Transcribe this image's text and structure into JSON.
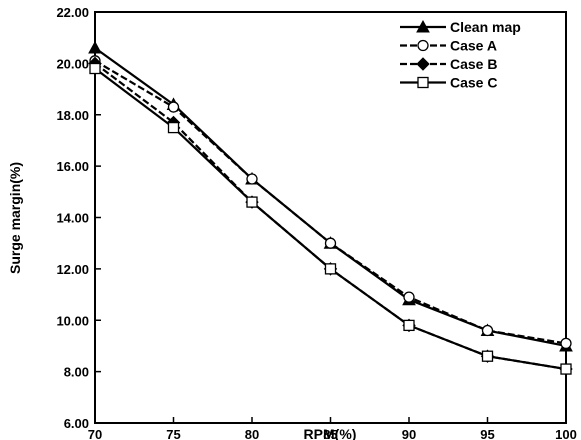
{
  "chart_data": {
    "type": "line",
    "title": "",
    "xlabel": "RPM(%)",
    "ylabel": "Surge margin(%)",
    "xlim": [
      70,
      100
    ],
    "ylim": [
      6,
      22
    ],
    "x_ticks": [
      "70",
      "75",
      "80",
      "85",
      "90",
      "95",
      "100"
    ],
    "y_ticks": [
      "6.00",
      "8.00",
      "10.00",
      "12.00",
      "14.00",
      "16.00",
      "18.00",
      "20.00",
      "22.00"
    ],
    "grid": false,
    "legend_position": "top-right",
    "x": [
      70,
      75,
      80,
      85,
      90,
      95,
      100
    ],
    "series": [
      {
        "name": "Clean map",
        "values": [
          20.6,
          18.4,
          15.5,
          13.0,
          10.8,
          9.6,
          9.0
        ],
        "marker": "triangle-filled",
        "dash": "solid"
      },
      {
        "name": "Case A",
        "values": [
          20.1,
          18.3,
          15.5,
          13.0,
          10.9,
          9.6,
          9.1
        ],
        "marker": "circle-open",
        "dash": "dashed"
      },
      {
        "name": "Case B",
        "values": [
          20.0,
          17.7,
          14.6,
          12.0,
          9.8,
          8.6,
          8.1
        ],
        "marker": "diamond-filled",
        "dash": "dashed"
      },
      {
        "name": "Case C",
        "values": [
          19.8,
          17.5,
          14.6,
          12.0,
          9.8,
          8.6,
          8.1
        ],
        "marker": "square-open",
        "dash": "solid"
      }
    ]
  }
}
